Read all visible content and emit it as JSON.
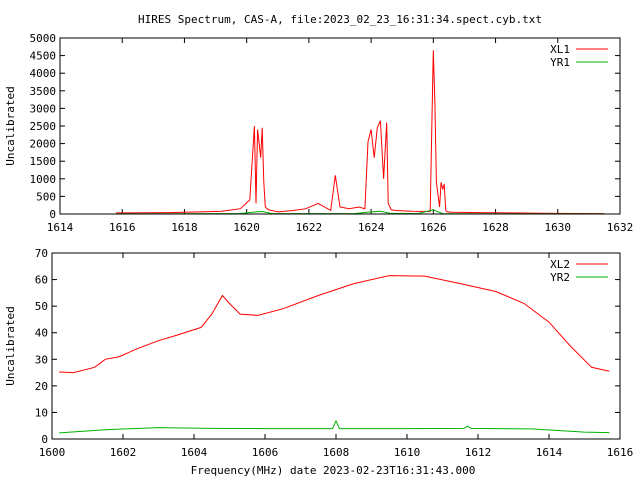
{
  "title": "HIRES Spectrum, CAS-A, file:2023_02_23_16:31:34.spect.cyb.txt",
  "xlabel": "Frequency(MHz) date 2023-02-23T16:31:43.000",
  "chart_data": [
    {
      "type": "line",
      "ylabel": "Uncalibrated",
      "xlim": [
        1614,
        1632
      ],
      "ylim": [
        0,
        5000
      ],
      "xticks": [
        1614,
        1616,
        1618,
        1620,
        1622,
        1624,
        1626,
        1628,
        1630,
        1632
      ],
      "yticks": [
        0,
        500,
        1000,
        1500,
        2000,
        2500,
        3000,
        3500,
        4000,
        4500,
        5000
      ],
      "legend_position": "top-right",
      "grid": false,
      "series": [
        {
          "name": "XL1",
          "color": "#ff0000",
          "x": [
            1615.8,
            1617.5,
            1618.5,
            1619.2,
            1619.8,
            1620.1,
            1620.25,
            1620.3,
            1620.35,
            1620.45,
            1620.5,
            1620.55,
            1620.6,
            1620.7,
            1621.0,
            1621.5,
            1621.9,
            1622.3,
            1622.7,
            1622.85,
            1623.0,
            1623.3,
            1623.6,
            1623.8,
            1623.9,
            1624.0,
            1624.1,
            1624.2,
            1624.3,
            1624.4,
            1624.5,
            1624.55,
            1624.65,
            1624.8,
            1625.3,
            1625.9,
            1626.0,
            1626.05,
            1626.1,
            1626.2,
            1626.25,
            1626.3,
            1626.35,
            1626.4,
            1626.45,
            1626.6,
            1627.5,
            1628.5,
            1629.5,
            1630.5,
            1631.5
          ],
          "y": [
            30,
            40,
            60,
            80,
            150,
            400,
            2500,
            300,
            2400,
            1600,
            2450,
            900,
            200,
            120,
            60,
            100,
            150,
            300,
            100,
            1100,
            200,
            150,
            200,
            150,
            2050,
            2400,
            1600,
            2450,
            2650,
            1000,
            2600,
            300,
            120,
            100,
            80,
            70,
            4650,
            3150,
            900,
            200,
            900,
            700,
            850,
            100,
            60,
            50,
            40,
            30,
            20,
            15,
            10
          ]
        },
        {
          "name": "YR1",
          "color": "#00b000",
          "x": [
            1615.8,
            1618.0,
            1619.8,
            1620.3,
            1620.5,
            1620.8,
            1622.0,
            1623.5,
            1624.0,
            1624.3,
            1624.6,
            1625.5,
            1626.0,
            1626.1,
            1626.3,
            1628.0,
            1631.5
          ],
          "y": [
            5,
            8,
            15,
            60,
            70,
            15,
            10,
            15,
            60,
            80,
            20,
            10,
            120,
            80,
            10,
            6,
            4
          ]
        }
      ]
    },
    {
      "type": "line",
      "ylabel": "Uncalibrated",
      "xlim": [
        1600,
        1616
      ],
      "ylim": [
        0,
        70
      ],
      "xticks": [
        1600,
        1602,
        1604,
        1606,
        1608,
        1610,
        1612,
        1614,
        1616
      ],
      "yticks": [
        0,
        10,
        20,
        30,
        40,
        50,
        60,
        70
      ],
      "legend_position": "top-right",
      "grid": false,
      "series": [
        {
          "name": "XL2",
          "color": "#ff0000",
          "x": [
            1600.2,
            1600.6,
            1601.2,
            1601.5,
            1601.9,
            1602.4,
            1603.0,
            1603.5,
            1604.2,
            1604.5,
            1604.8,
            1605.0,
            1605.3,
            1605.8,
            1606.5,
            1607.5,
            1608.5,
            1609.5,
            1610.5,
            1611.5,
            1612.5,
            1613.3,
            1614.0,
            1614.6,
            1615.2,
            1615.7
          ],
          "y": [
            25.2,
            25.0,
            27.0,
            30.0,
            31.0,
            34.0,
            37.0,
            39.0,
            42.0,
            47.0,
            54.0,
            51.0,
            47.0,
            46.5,
            49.0,
            54.0,
            58.5,
            61.5,
            61.3,
            58.5,
            55.5,
            51.0,
            44.0,
            35.0,
            27.0,
            25.5
          ]
        },
        {
          "name": "YR2",
          "color": "#00b000",
          "x": [
            1600.2,
            1601.5,
            1603.0,
            1604.5,
            1606.0,
            1607.9,
            1608.0,
            1608.1,
            1610.0,
            1611.6,
            1611.7,
            1611.8,
            1613.5,
            1615.0,
            1615.7
          ],
          "y": [
            2.3,
            3.5,
            4.3,
            4.0,
            3.9,
            3.9,
            6.8,
            3.9,
            3.9,
            4.0,
            4.8,
            4.0,
            3.8,
            2.6,
            2.4
          ]
        }
      ]
    }
  ]
}
